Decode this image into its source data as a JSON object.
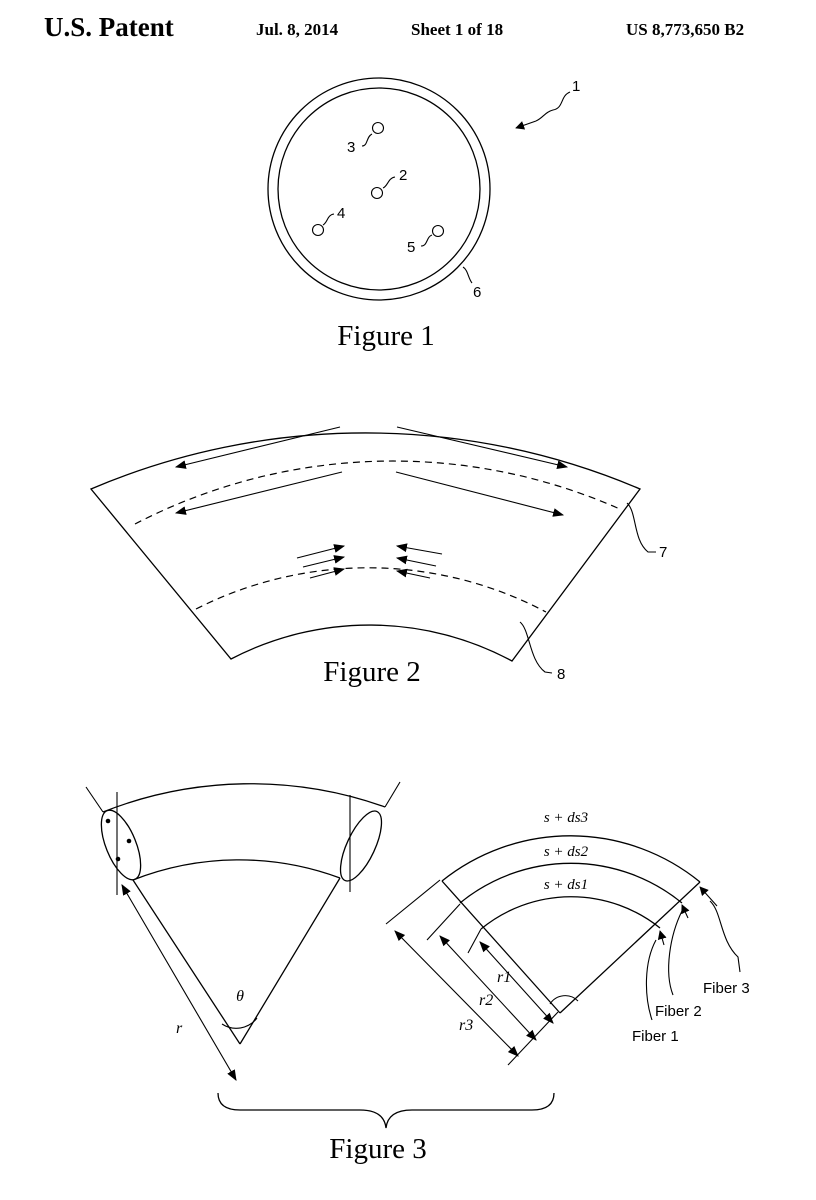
{
  "header": {
    "publisher": "U.S. Patent",
    "date": "Jul. 8, 2014",
    "sheet": "Sheet 1 of 18",
    "patent_number": "US 8,773,650 B2"
  },
  "figure1": {
    "caption": "Figure 1",
    "labels": {
      "assembly": "1",
      "core_2": "2",
      "core_3": "3",
      "core_4": "4",
      "core_5": "5",
      "cladding": "6"
    }
  },
  "figure2": {
    "caption": "Figure 2",
    "labels": {
      "outer_core": "7",
      "inner_core": "8"
    }
  },
  "figure3": {
    "caption": "Figure 3",
    "left": {
      "angle": "θ",
      "radius": "r"
    },
    "right": {
      "arc_labels": [
        "s + ds3",
        "s + ds2",
        "s + ds1"
      ],
      "radius_labels": [
        "r1",
        "r2",
        "r3"
      ],
      "fibers": [
        "Fiber 3",
        "Fiber 2",
        "Fiber 1"
      ]
    }
  }
}
